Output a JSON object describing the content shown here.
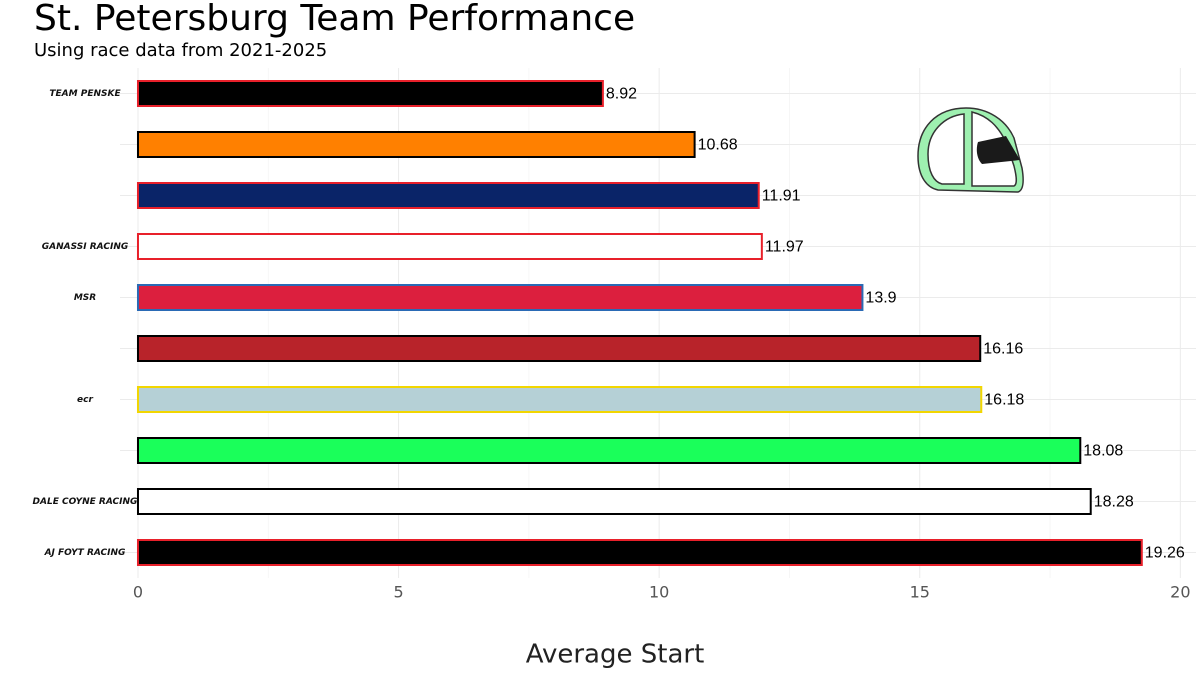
{
  "chart_data": {
    "type": "barh",
    "title": "St. Petersburg Team Performance",
    "subtitle": "Using race data from 2021-2025",
    "x_label": "Average Start",
    "categories": [
      "TEAM PENSKE",
      null,
      null,
      "GANASSI RACING",
      "MSR",
      null,
      "ecr",
      null,
      "DALE COYNE RACING",
      "AJ FOYT RACING"
    ],
    "values": [
      8.92,
      10.68,
      11.91,
      11.97,
      13.9,
      16.16,
      16.18,
      18.08,
      18.28,
      19.26
    ],
    "colors": [
      "#000000",
      "#ff8000",
      "#0a2468",
      "#ffffff",
      "#dc1f3e",
      "#b8232a",
      "#b5d0d6",
      "#1aff5a",
      "#ffffff",
      "#000000"
    ],
    "edge_colors": [
      "#e8202a",
      "#000000",
      "#e8202a",
      "#e8202a",
      "#2a6ab5",
      "#000000",
      "#f2d600",
      "#000000",
      "#000000",
      "#e8202a"
    ],
    "xlim": [
      -0.345,
      20.3
    ],
    "xticks": [
      0,
      5,
      10,
      15,
      20
    ],
    "minor_xticks": [
      2.5,
      7.5,
      12.5,
      17.5
    ],
    "grid": true
  }
}
